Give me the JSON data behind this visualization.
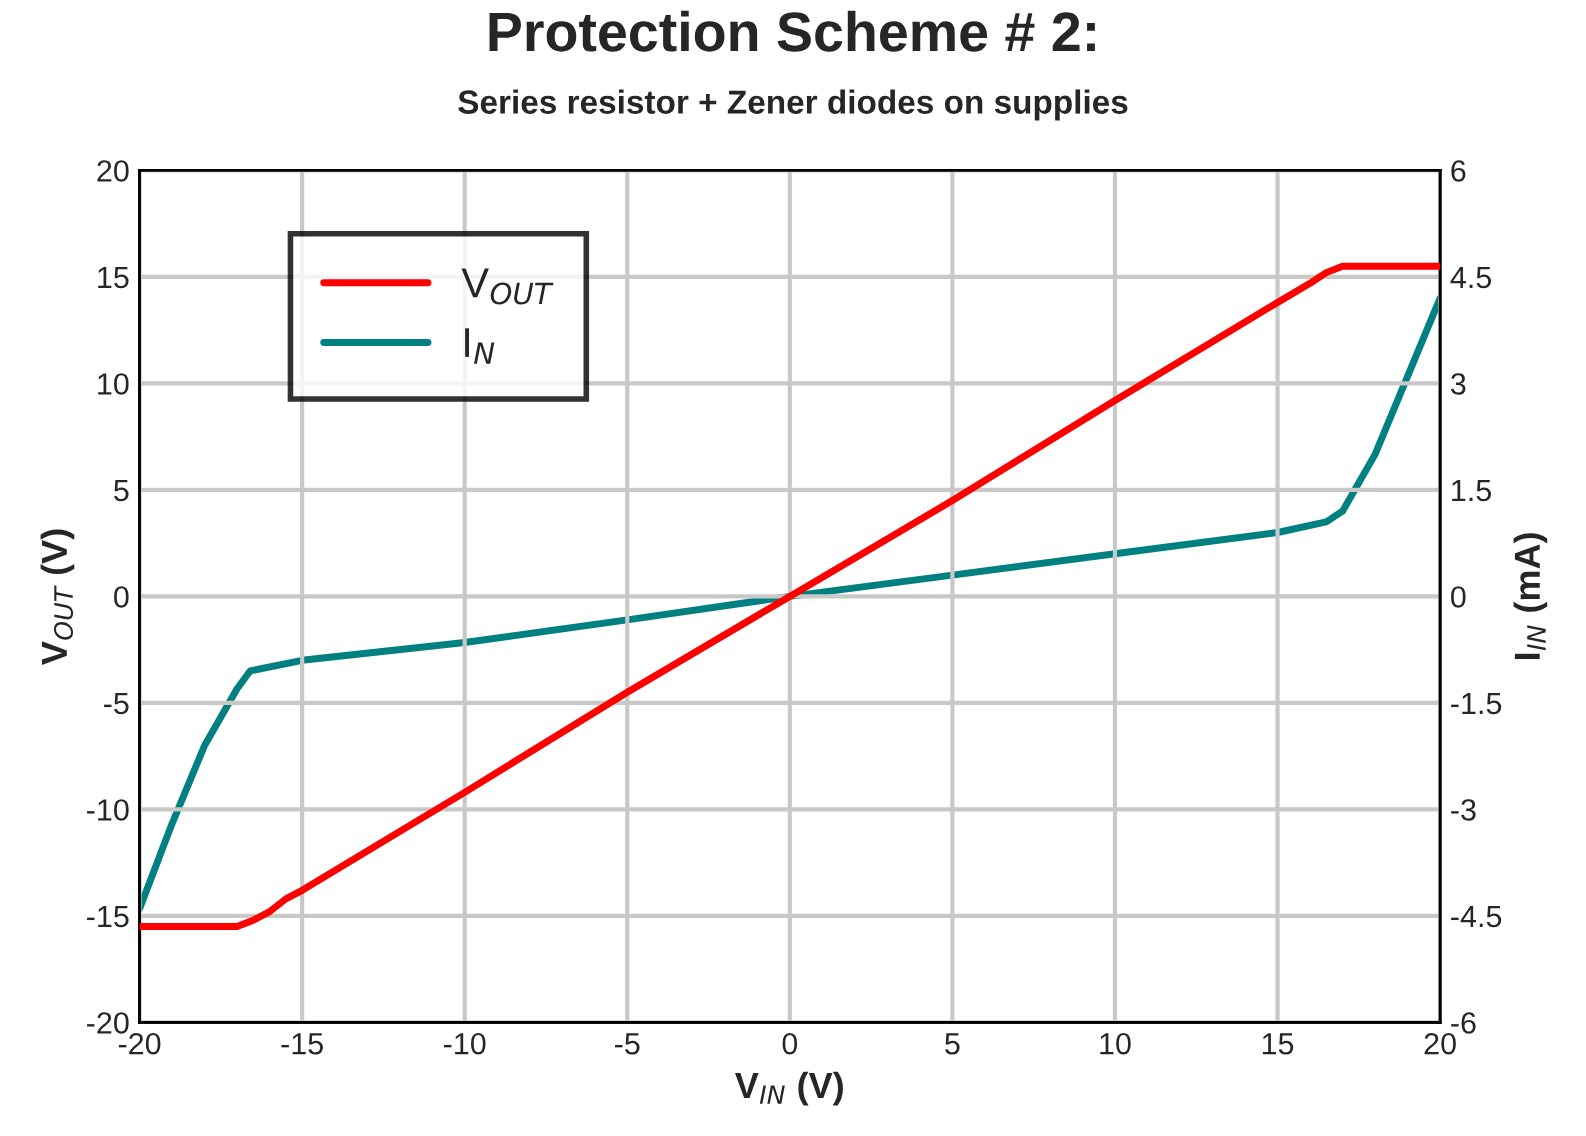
{
  "chart_data": {
    "type": "line",
    "title": "Protection Scheme # 2:",
    "subtitle": "Series resistor + Zener diodes on supplies",
    "xlabel": "V$_{IN}$ (V)",
    "ylabel": "V$_{OUT}$ (V)",
    "y2label": "I$_{IN}$ (mA)",
    "xlim": [
      -20,
      20
    ],
    "xticks": [
      -20,
      -15,
      -10,
      -5,
      0,
      5,
      10,
      15,
      20
    ],
    "ylim": [
      -20,
      20
    ],
    "yticks": [
      -20,
      -15,
      -10,
      -5,
      0,
      5,
      10,
      15,
      20
    ],
    "y2lim": [
      -6,
      6
    ],
    "y2ticks": [
      -6,
      -4.5,
      -3,
      -1.5,
      0,
      1.5,
      3,
      4.5,
      6
    ],
    "grid": true,
    "legend": "top left",
    "marker": "none",
    "line_style": "solid",
    "series": [
      {
        "name": "V$_{OUT}$",
        "color": "#ff0000",
        "x": [
          -20,
          -17,
          -16.5,
          -16,
          -15.5,
          -15,
          -10,
          -5,
          0,
          5,
          10,
          15,
          16,
          16.5,
          17,
          20
        ],
        "values": [
          -15.5,
          -15.5,
          -15.2,
          -14.8,
          -14.2,
          -13.8,
          -9.2,
          -4.5,
          0,
          4.5,
          9.2,
          13.8,
          14.7,
          15.2,
          15.5,
          15.5
        ]
      },
      {
        "name": "I$_{N}$",
        "color": "#008080",
        "axis": "y2",
        "x": [
          -20,
          -19,
          -18,
          -17,
          -16.6,
          -15,
          -10,
          -5,
          0,
          5,
          10,
          15,
          16.5,
          17,
          18,
          19,
          20
        ],
        "values": [
          -4.4,
          -3.2,
          -2.1,
          -1.3,
          -1.05,
          -0.9,
          -0.65,
          -0.33,
          0,
          0.3,
          0.6,
          0.9,
          1.05,
          1.2,
          2.0,
          3.1,
          4.2
        ]
      }
    ]
  }
}
